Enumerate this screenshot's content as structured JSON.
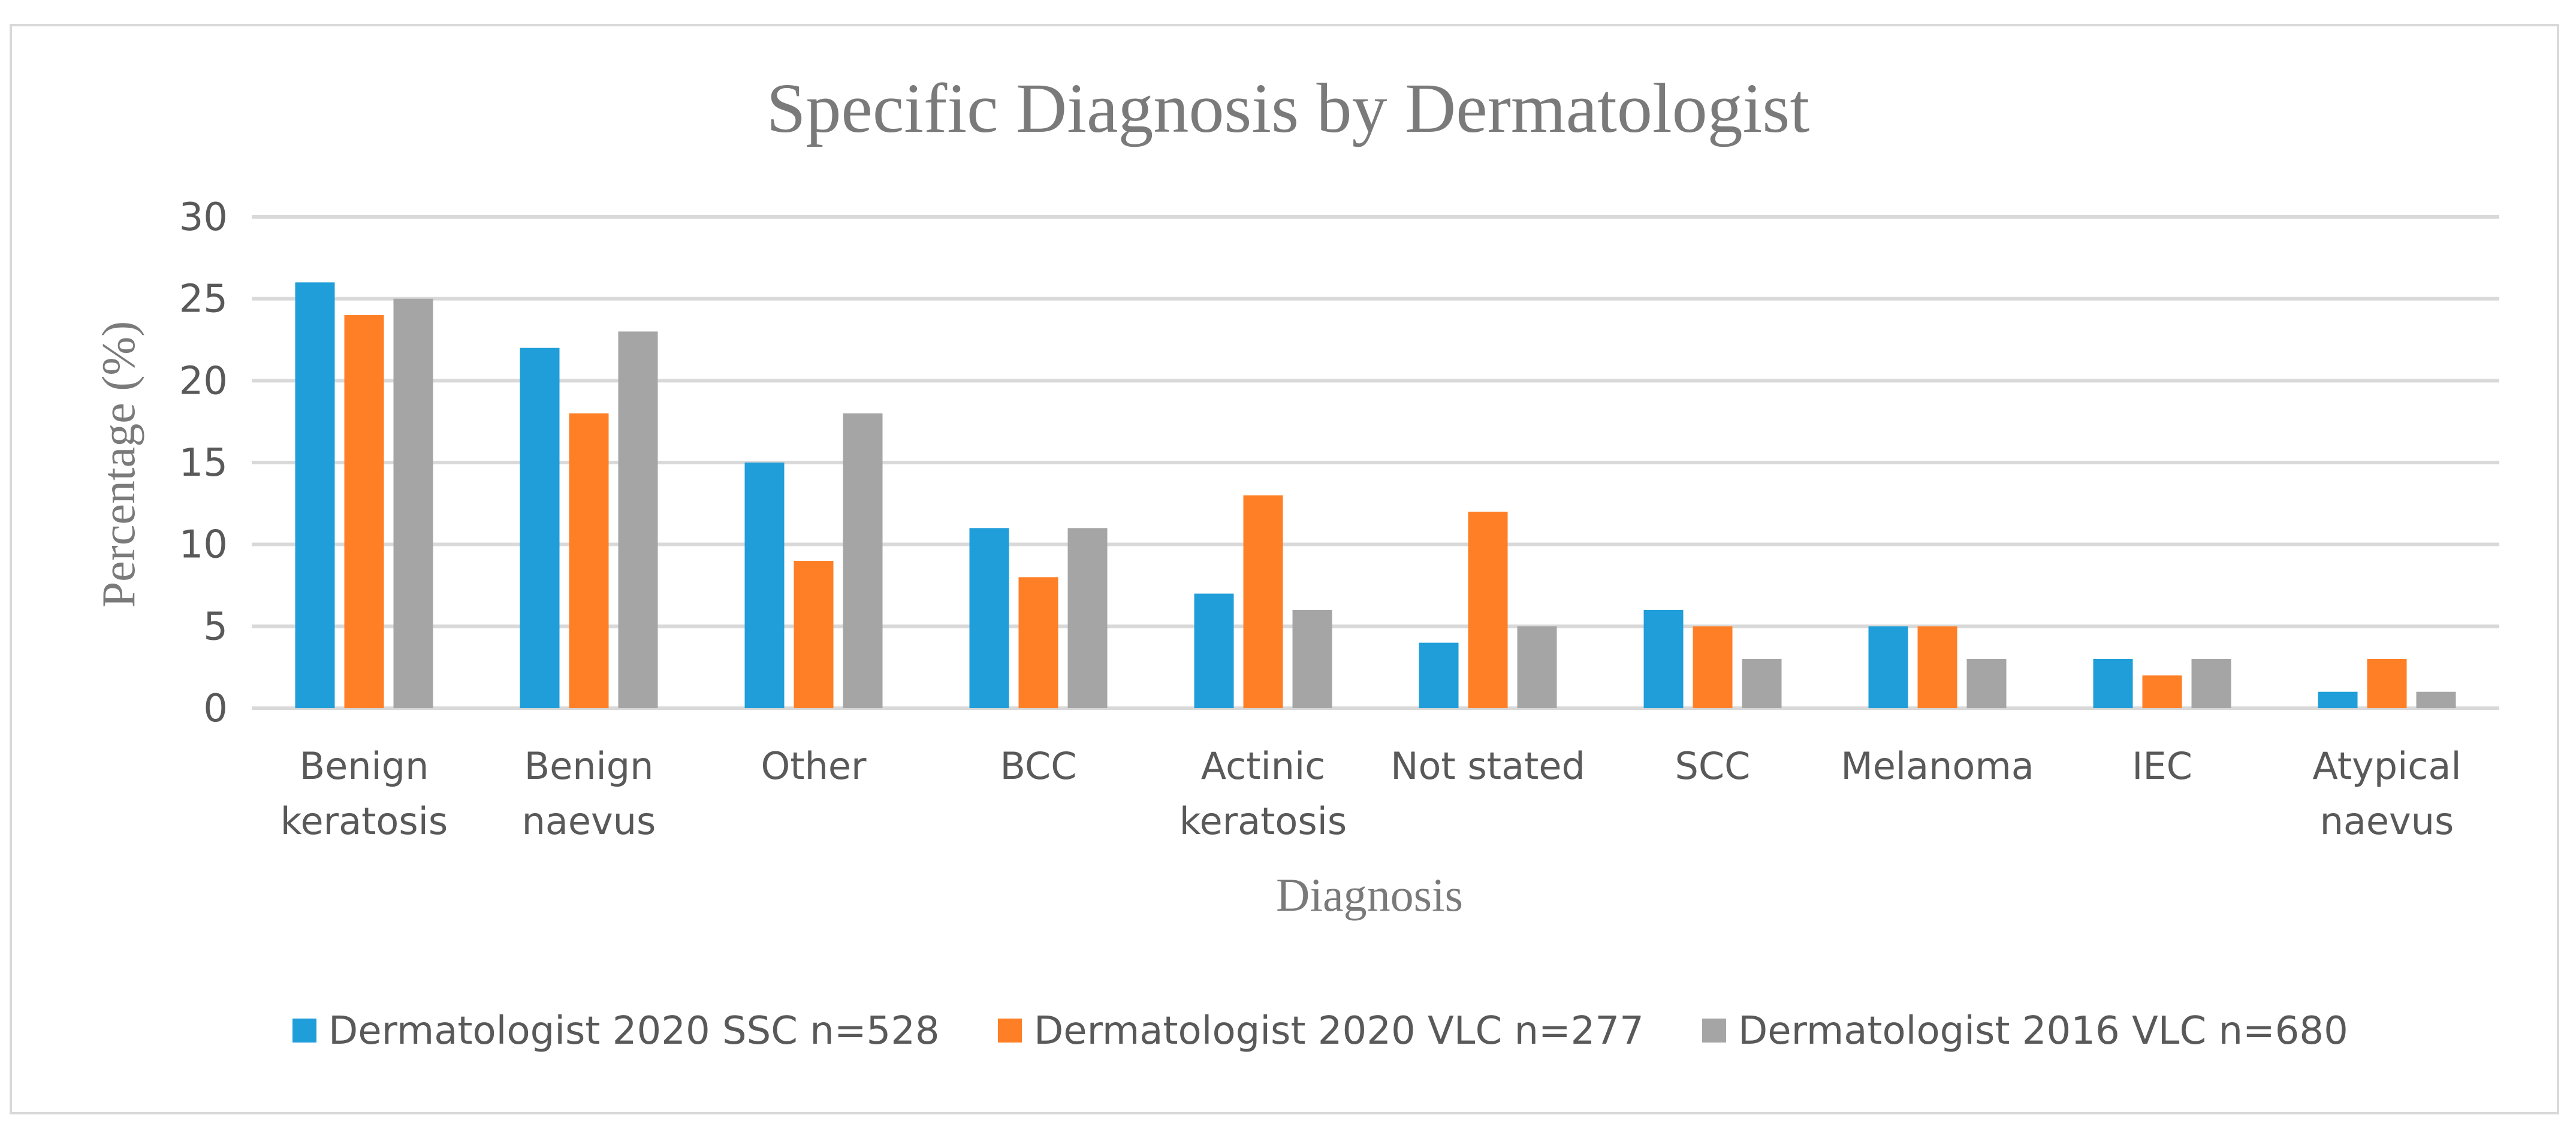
{
  "chart_data": {
    "type": "bar",
    "title": "Specific Diagnosis by Dermatologist",
    "xlabel": "Diagnosis",
    "ylabel": "Percentage (%)",
    "ylim": [
      0,
      30
    ],
    "yticks": [
      "0",
      "5",
      "10",
      "15",
      "20",
      "25",
      "30"
    ],
    "grid": true,
    "legend_position": "bottom",
    "categories": [
      [
        "Benign",
        "keratosis"
      ],
      [
        "Benign",
        "naevus"
      ],
      [
        "Other"
      ],
      [
        "BCC"
      ],
      [
        "Actinic",
        "keratosis"
      ],
      [
        "Not stated"
      ],
      [
        "SCC"
      ],
      [
        "Melanoma"
      ],
      [
        "IEC"
      ],
      [
        "Atypical",
        "naevus"
      ]
    ],
    "series": [
      {
        "name": "Dermatologist 2020 SSC n=528",
        "color": "#1f9ed9",
        "values": [
          26,
          22,
          15,
          11,
          7,
          4,
          6,
          5,
          3,
          1
        ]
      },
      {
        "name": "Dermatologist 2020 VLC n=277",
        "color": "#ff7f27",
        "values": [
          24,
          18,
          9,
          8,
          13,
          12,
          5,
          5,
          2,
          3
        ]
      },
      {
        "name": "Dermatologist 2016 VLC n=680",
        "color": "#a5a5a5",
        "values": [
          25,
          23,
          18,
          11,
          6,
          5,
          3,
          3,
          3,
          1
        ]
      }
    ]
  }
}
